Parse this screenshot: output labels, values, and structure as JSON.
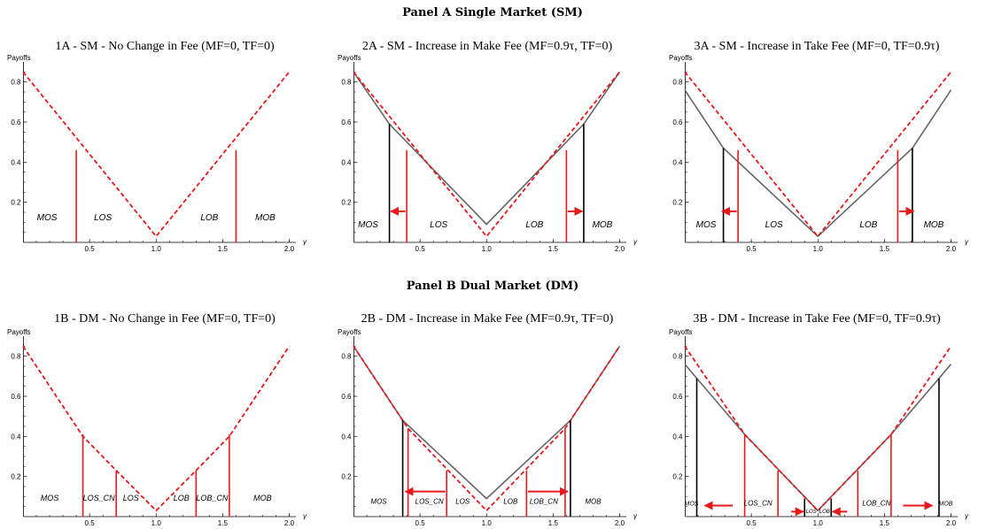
{
  "panels": [
    {
      "title": "Panel A Single Market (SM)"
    },
    {
      "title": "Panel B Dual Market (DM)"
    }
  ],
  "colors": {
    "dashed": "#e8191b",
    "solid": "#666666",
    "arrow": "#e8191b",
    "black_line": "#000000"
  },
  "chart_data": [
    {
      "id": "1A",
      "type": "line",
      "title": "1A - SM - No Change in Fee (MF=0, TF=0)",
      "xlabel": "γ",
      "ylabel": "Payoffs",
      "xlim": [
        0,
        2.05
      ],
      "ylim": [
        0,
        0.9
      ],
      "xticks": [
        "0.5",
        "1.0",
        "1.5",
        "2.0"
      ],
      "yticks": [
        "0.2",
        "0.4",
        "0.6",
        "0.8"
      ],
      "series": [
        {
          "style": "dashed-red",
          "points": [
            [
              0,
              0.85
            ],
            [
              1.0,
              0.03
            ],
            [
              2.0,
              0.85
            ]
          ]
        }
      ],
      "vlines": [
        {
          "x": 0.4,
          "y": 0.46,
          "color": "red"
        },
        {
          "x": 1.6,
          "y": 0.46,
          "color": "red"
        }
      ],
      "arrows": [],
      "regions": [
        {
          "label": "MOS",
          "x": 0.18,
          "y": 0.11,
          "size": 10
        },
        {
          "label": "LOS",
          "x": 0.6,
          "y": 0.11,
          "size": 10
        },
        {
          "label": "LOB",
          "x": 1.4,
          "y": 0.11,
          "size": 10
        },
        {
          "label": "MOB",
          "x": 1.82,
          "y": 0.11,
          "size": 10
        }
      ]
    },
    {
      "id": "2A",
      "type": "line",
      "title": "2A - SM - Increase in Make Fee (MF=0.9τ, TF=0)",
      "xlabel": "γ",
      "ylabel": "Payoffs",
      "xlim": [
        0,
        2.05
      ],
      "ylim": [
        0,
        0.9
      ],
      "xticks": [
        "0.5",
        "1.0",
        "1.5",
        "2.0"
      ],
      "yticks": [
        "0.2",
        "0.4",
        "0.6",
        "0.8"
      ],
      "series": [
        {
          "style": "solid-gray",
          "points": [
            [
              0,
              0.85
            ],
            [
              0.27,
              0.59
            ],
            [
              1.0,
              0.09
            ],
            [
              1.73,
              0.59
            ],
            [
              2.0,
              0.85
            ]
          ]
        },
        {
          "style": "dashed-red",
          "points": [
            [
              0,
              0.85
            ],
            [
              1.0,
              0.03
            ],
            [
              2.0,
              0.85
            ]
          ]
        }
      ],
      "vlines": [
        {
          "x": 0.27,
          "y": 0.59,
          "color": "black"
        },
        {
          "x": 1.73,
          "y": 0.59,
          "color": "black"
        },
        {
          "x": 0.4,
          "y": 0.46,
          "color": "red"
        },
        {
          "x": 1.6,
          "y": 0.46,
          "color": "red"
        }
      ],
      "arrows": [
        {
          "x1": 0.39,
          "x2": 0.28,
          "y": 0.155
        },
        {
          "x1": 1.61,
          "x2": 1.72,
          "y": 0.155
        }
      ],
      "regions": [
        {
          "label": "MOS",
          "x": 0.11,
          "y": 0.075,
          "size": 10
        },
        {
          "label": "LOS",
          "x": 0.64,
          "y": 0.075,
          "size": 10
        },
        {
          "label": "LOB",
          "x": 1.36,
          "y": 0.075,
          "size": 10
        },
        {
          "label": "MOB",
          "x": 1.87,
          "y": 0.075,
          "size": 10
        }
      ]
    },
    {
      "id": "3A",
      "type": "line",
      "title": "3A - SM - Increase in Take Fee (MF=0, TF=0.9τ)",
      "xlabel": "γ",
      "ylabel": "Payoffs",
      "xlim": [
        0,
        2.05
      ],
      "ylim": [
        0,
        0.9
      ],
      "xticks": [
        "0.5",
        "1.0",
        "1.5",
        "2.0"
      ],
      "yticks": [
        "0.2",
        "0.4",
        "0.6",
        "0.8"
      ],
      "series": [
        {
          "style": "solid-gray",
          "points": [
            [
              0,
              0.76
            ],
            [
              0.29,
              0.47
            ],
            [
              1.0,
              0.03
            ],
            [
              1.71,
              0.47
            ],
            [
              2.0,
              0.76
            ]
          ]
        },
        {
          "style": "dashed-red",
          "points": [
            [
              0,
              0.85
            ],
            [
              1.0,
              0.03
            ],
            [
              2.0,
              0.85
            ]
          ]
        }
      ],
      "vlines": [
        {
          "x": 0.29,
          "y": 0.47,
          "color": "black"
        },
        {
          "x": 1.71,
          "y": 0.47,
          "color": "black"
        },
        {
          "x": 0.4,
          "y": 0.46,
          "color": "red"
        },
        {
          "x": 1.6,
          "y": 0.46,
          "color": "red"
        }
      ],
      "arrows": [
        {
          "x1": 0.39,
          "x2": 0.28,
          "y": 0.155
        },
        {
          "x1": 1.61,
          "x2": 1.72,
          "y": 0.155
        }
      ],
      "regions": [
        {
          "label": "MOS",
          "x": 0.16,
          "y": 0.075,
          "size": 10
        },
        {
          "label": "LOS",
          "x": 0.67,
          "y": 0.075,
          "size": 10
        },
        {
          "label": "LOB",
          "x": 1.38,
          "y": 0.075,
          "size": 10
        },
        {
          "label": "MOB",
          "x": 1.87,
          "y": 0.075,
          "size": 10
        }
      ]
    },
    {
      "id": "1B",
      "type": "line",
      "title": "1B - DM - No Change in Fee (MF=0, TF=0)",
      "xlabel": "γ",
      "ylabel": "Payoffs",
      "xlim": [
        0,
        2.05
      ],
      "ylim": [
        0,
        0.9
      ],
      "xticks": [
        "0.5",
        "1.0",
        "1.5",
        "2.0"
      ],
      "yticks": [
        "0.2",
        "0.4",
        "0.6",
        "0.8"
      ],
      "series": [
        {
          "style": "dashed-red",
          "points": [
            [
              0,
              0.85
            ],
            [
              0.45,
              0.4
            ],
            [
              0.7,
              0.23
            ],
            [
              1.0,
              0.03
            ],
            [
              1.3,
              0.23
            ],
            [
              1.55,
              0.4
            ],
            [
              2.0,
              0.85
            ]
          ]
        }
      ],
      "vlines": [
        {
          "x": 0.45,
          "y": 0.41,
          "color": "red"
        },
        {
          "x": 0.7,
          "y": 0.23,
          "color": "red"
        },
        {
          "x": 1.3,
          "y": 0.23,
          "color": "red"
        },
        {
          "x": 1.55,
          "y": 0.41,
          "color": "red"
        }
      ],
      "arrows": [],
      "regions": [
        {
          "label": "MOS",
          "x": 0.2,
          "y": 0.08,
          "size": 9
        },
        {
          "label": "LOS_CN",
          "x": 0.57,
          "y": 0.08,
          "size": 9
        },
        {
          "label": "LOS",
          "x": 0.81,
          "y": 0.08,
          "size": 9
        },
        {
          "label": "LOB",
          "x": 1.19,
          "y": 0.08,
          "size": 9
        },
        {
          "label": "LOB_CN",
          "x": 1.42,
          "y": 0.08,
          "size": 9
        },
        {
          "label": "MOB",
          "x": 1.8,
          "y": 0.08,
          "size": 9
        }
      ]
    },
    {
      "id": "2B",
      "type": "line",
      "title": "2B - DM - Increase in Make Fee (MF=0.9τ, TF=0)",
      "xlabel": "γ",
      "ylabel": "Payoffs",
      "xlim": [
        0,
        2.05
      ],
      "ylim": [
        0,
        0.9
      ],
      "xticks": [
        "0.5",
        "1.0",
        "1.5",
        "2.0"
      ],
      "yticks": [
        "0.2",
        "0.4",
        "0.6",
        "0.8"
      ],
      "series": [
        {
          "style": "solid-gray",
          "points": [
            [
              0,
              0.85
            ],
            [
              0.37,
              0.48
            ],
            [
              1.0,
              0.09
            ],
            [
              1.63,
              0.48
            ],
            [
              2.0,
              0.85
            ]
          ]
        },
        {
          "style": "dashed-red",
          "points": [
            [
              0,
              0.85
            ],
            [
              0.41,
              0.44
            ],
            [
              1.0,
              0.03
            ],
            [
              1.59,
              0.44
            ],
            [
              2.0,
              0.85
            ]
          ]
        }
      ],
      "vlines": [
        {
          "x": 0.37,
          "y": 0.48,
          "color": "black"
        },
        {
          "x": 1.63,
          "y": 0.48,
          "color": "black"
        },
        {
          "x": 0.41,
          "y": 0.44,
          "color": "red"
        },
        {
          "x": 0.7,
          "y": 0.23,
          "color": "red"
        },
        {
          "x": 1.3,
          "y": 0.23,
          "color": "red"
        },
        {
          "x": 1.59,
          "y": 0.44,
          "color": "red"
        }
      ],
      "arrows": [
        {
          "x1": 0.69,
          "x2": 0.39,
          "y": 0.125
        },
        {
          "x1": 1.31,
          "x2": 1.61,
          "y": 0.125
        }
      ],
      "regions": [
        {
          "label": "MOS",
          "x": 0.19,
          "y": 0.065,
          "size": 8
        },
        {
          "label": "LOS_CN",
          "x": 0.57,
          "y": 0.065,
          "size": 8
        },
        {
          "label": "LOS",
          "x": 0.82,
          "y": 0.065,
          "size": 8
        },
        {
          "label": "LOB",
          "x": 1.18,
          "y": 0.065,
          "size": 8
        },
        {
          "label": "LOB_CN",
          "x": 1.43,
          "y": 0.065,
          "size": 8
        },
        {
          "label": "MOB",
          "x": 1.8,
          "y": 0.065,
          "size": 8
        }
      ]
    },
    {
      "id": "3B",
      "type": "line",
      "title": "3B - DM - Increase in Take Fee (MF=0, TF=0.9τ)",
      "xlabel": "γ",
      "ylabel": "Payoffs",
      "xlim": [
        0,
        2.05
      ],
      "ylim": [
        0,
        0.9
      ],
      "xticks": [
        "0.5",
        "1.0",
        "1.5",
        "2.0"
      ],
      "yticks": [
        "0.2",
        "0.4",
        "0.6",
        "0.8"
      ],
      "series": [
        {
          "style": "solid-gray",
          "points": [
            [
              0,
              0.76
            ],
            [
              0.09,
              0.69
            ],
            [
              0.45,
              0.41
            ],
            [
              1.0,
              0.03
            ],
            [
              1.55,
              0.41
            ],
            [
              1.91,
              0.69
            ],
            [
              2.0,
              0.76
            ]
          ]
        },
        {
          "style": "dashed-red",
          "points": [
            [
              0,
              0.85
            ],
            [
              0.45,
              0.41
            ],
            [
              1.0,
              0.03
            ],
            [
              1.55,
              0.41
            ],
            [
              2.0,
              0.85
            ]
          ]
        }
      ],
      "vlines": [
        {
          "x": 0.09,
          "y": 0.69,
          "color": "black"
        },
        {
          "x": 0.9,
          "y": 0.09,
          "color": "black"
        },
        {
          "x": 1.1,
          "y": 0.09,
          "color": "black"
        },
        {
          "x": 1.91,
          "y": 0.69,
          "color": "black"
        },
        {
          "x": 0.45,
          "y": 0.41,
          "color": "red"
        },
        {
          "x": 0.7,
          "y": 0.23,
          "color": "red"
        },
        {
          "x": 1.3,
          "y": 0.23,
          "color": "red"
        },
        {
          "x": 1.55,
          "y": 0.41,
          "color": "red"
        }
      ],
      "arrows": [
        {
          "x1": 0.36,
          "x2": 0.15,
          "y": 0.055
        },
        {
          "x1": 1.64,
          "x2": 1.86,
          "y": 0.055
        },
        {
          "x1": 0.8,
          "x2": 0.89,
          "y": 0.025
        },
        {
          "x1": 1.22,
          "x2": 1.11,
          "y": 0.025
        }
      ],
      "regions": [
        {
          "label": "MOS",
          "x": 0.05,
          "y": 0.055,
          "size": 7
        },
        {
          "label": "LOS_CN",
          "x": 0.55,
          "y": 0.055,
          "size": 8
        },
        {
          "label": "LOS",
          "x": 0.95,
          "y": 0.018,
          "size": 6
        },
        {
          "label": "LOB",
          "x": 1.05,
          "y": 0.018,
          "size": 6
        },
        {
          "label": "LOB_CN",
          "x": 1.44,
          "y": 0.055,
          "size": 8
        },
        {
          "label": "MOB",
          "x": 1.96,
          "y": 0.055,
          "size": 7
        }
      ]
    }
  ]
}
